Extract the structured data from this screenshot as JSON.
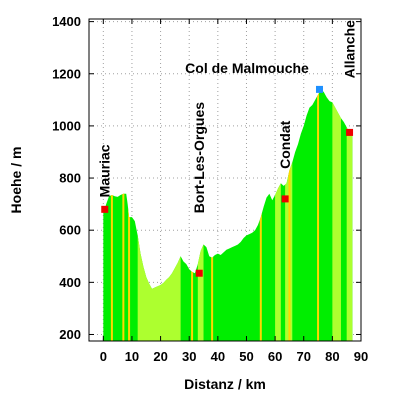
{
  "chart_data": {
    "type": "area",
    "title": "Col de Malmouche",
    "xlabel": "Distanz / km",
    "ylabel": "Hoehe / m",
    "xlim": [
      -5,
      90
    ],
    "ylim": [
      175,
      1410
    ],
    "x_ticks": [
      0,
      10,
      20,
      30,
      40,
      50,
      60,
      70,
      80,
      90
    ],
    "y_ticks": [
      200,
      400,
      600,
      800,
      1000,
      1200,
      1400
    ],
    "grid": true,
    "colors": {
      "fill_main": "#00ee00",
      "fill_light": "#adff2f",
      "stripe": "#ffd700",
      "marker_place": "#ee0000",
      "marker_summit": "#1e90ff"
    },
    "profile": {
      "x": [
        0,
        0.5,
        1,
        2,
        3,
        4,
        5,
        6,
        7,
        8,
        8.5,
        9,
        10,
        11,
        12,
        13,
        14,
        15,
        16,
        17,
        18,
        19,
        20,
        21,
        22,
        23,
        24,
        25,
        26,
        27,
        28,
        29,
        30,
        31,
        32,
        33,
        34,
        35,
        36,
        37,
        38,
        39,
        40,
        41,
        42,
        43,
        44,
        45,
        46,
        47,
        48,
        49,
        50,
        51,
        52,
        53,
        54,
        55,
        56,
        57,
        58,
        59,
        60,
        61,
        62,
        63,
        64,
        65,
        66,
        67,
        68,
        69,
        70,
        71,
        72,
        73,
        74,
        75,
        76,
        77,
        78,
        79,
        80,
        81,
        82,
        83,
        84,
        85,
        86,
        87
      ],
      "y": [
        680,
        680,
        700,
        730,
        735,
        730,
        728,
        735,
        740,
        740,
        700,
        650,
        650,
        635,
        580,
        510,
        460,
        420,
        395,
        375,
        380,
        385,
        390,
        398,
        410,
        420,
        435,
        455,
        475,
        500,
        480,
        470,
        450,
        440,
        435,
        470,
        520,
        545,
        535,
        500,
        495,
        505,
        510,
        505,
        515,
        525,
        530,
        535,
        540,
        545,
        555,
        570,
        580,
        585,
        590,
        600,
        620,
        650,
        690,
        725,
        740,
        715,
        735,
        760,
        780,
        770,
        780,
        830,
        860,
        900,
        930,
        970,
        1000,
        1040,
        1070,
        1080,
        1100,
        1120,
        1140,
        1130,
        1110,
        1095,
        1090,
        1070,
        1050,
        1030,
        1015,
        995,
        975,
        960
      ]
    },
    "stripes_x": [
      3,
      7,
      9,
      31,
      38,
      55,
      65,
      75
    ],
    "light_ranges": [
      [
        12,
        27
      ],
      [
        33,
        35
      ],
      [
        60,
        62
      ],
      [
        63.5,
        66
      ],
      [
        80,
        83
      ],
      [
        85,
        87
      ]
    ],
    "places": [
      {
        "name": "Mauriac",
        "x": 0.5,
        "y": 680
      },
      {
        "name": "Bort-Les-Orgues",
        "x": 33.5,
        "y": 435
      },
      {
        "name": "Condat",
        "x": 63.5,
        "y": 720
      },
      {
        "name": "Allanche",
        "x": 86,
        "y": 975
      }
    ],
    "summit": {
      "name": "Col de Malmouche",
      "x": 75.5,
      "y": 1140
    }
  }
}
